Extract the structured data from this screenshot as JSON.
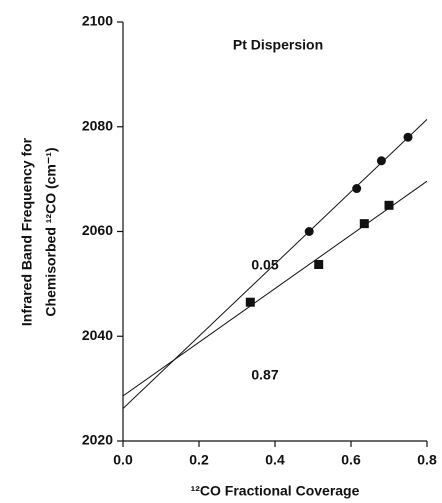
{
  "chart_data": {
    "type": "scatter",
    "annotation": "Pt Dispersion",
    "xlabel": "¹²CO Fractional Coverage",
    "ylabel": [
      "Infrared Band Frequency for",
      "Chemisorbed ¹²CO (cm⁻¹)"
    ],
    "xlim": [
      0,
      0.8
    ],
    "ylim": [
      2020,
      2100
    ],
    "xticks": [
      {
        "value": 0,
        "label": "0.0"
      },
      0.2,
      0.4,
      0.6,
      0.8
    ],
    "yticks": [
      2020,
      2040,
      2060,
      2080,
      2100
    ],
    "series": [
      {
        "name": "0.05",
        "marker": "circle",
        "color": "#111111",
        "x": [
          0.49,
          0.615,
          0.68,
          0.75
        ],
        "values": [
          2060,
          2068.2,
          2073.5,
          2078
        ],
        "fit": {
          "x": [
            0,
            0.8
          ],
          "y": [
            2026.2,
            2081.4
          ]
        }
      },
      {
        "name": "0.87",
        "marker": "square",
        "color": "#111111",
        "x": [
          0.335,
          0.515,
          0.635,
          0.7
        ],
        "values": [
          2046.5,
          2053.7,
          2061.5,
          2065
        ],
        "fit": {
          "x": [
            0,
            0.8
          ],
          "y": [
            2028.6,
            2069.6
          ]
        }
      }
    ]
  }
}
